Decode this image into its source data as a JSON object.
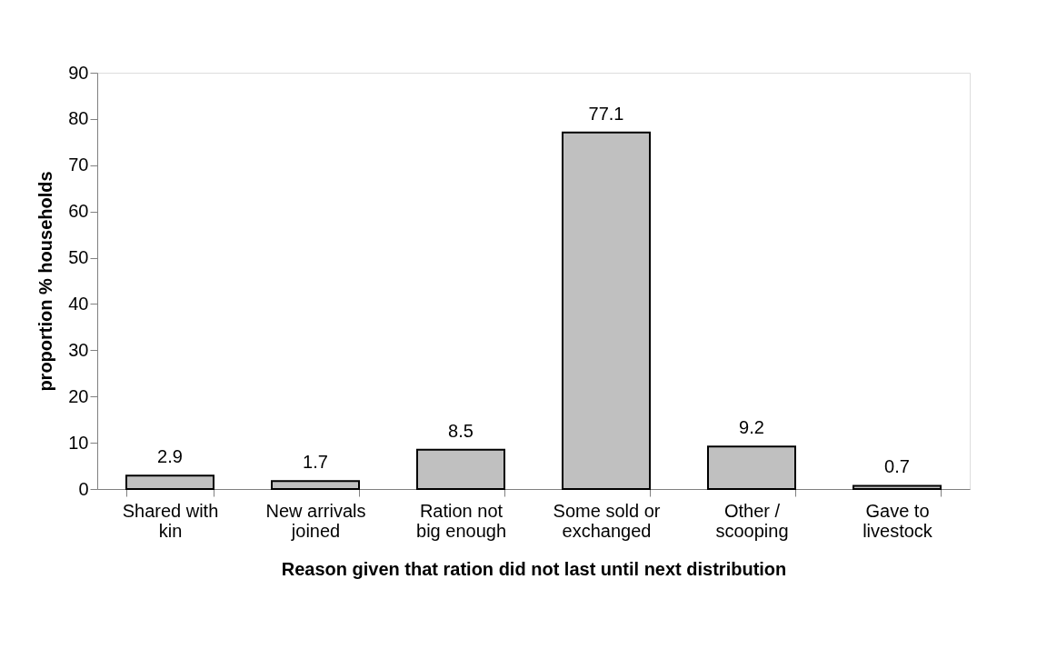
{
  "chart_data": {
    "type": "bar",
    "xlabel": "Reason given that ration did not last until next distribution",
    "ylabel": "proportion % households",
    "categories": [
      "Shared with kin",
      "New arrivals joined",
      "Ration not big enough",
      "Some sold or exchanged",
      "Other / scooping",
      "Gave to livestock"
    ],
    "values": [
      2.9,
      1.7,
      8.5,
      77.1,
      9.2,
      0.7
    ],
    "color": "#c0c0c0",
    "ylim": [
      0,
      90
    ],
    "yticks": [
      0,
      10,
      20,
      30,
      40,
      50,
      60,
      70,
      80,
      90
    ],
    "grid": false,
    "data_labels": true
  }
}
